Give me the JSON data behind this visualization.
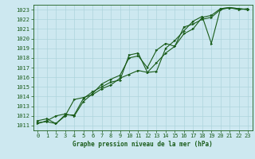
{
  "title": "Graphe pression niveau de la mer (hPa)",
  "background_color": "#cde8f0",
  "grid_color": "#aed4dc",
  "line_color": "#1a5c1a",
  "marker_color": "#1a5c1a",
  "xlim": [
    -0.5,
    23.5
  ],
  "ylim": [
    1010.5,
    1023.5
  ],
  "xticks": [
    0,
    1,
    2,
    3,
    4,
    5,
    6,
    7,
    8,
    9,
    10,
    11,
    12,
    13,
    14,
    15,
    16,
    17,
    18,
    19,
    20,
    21,
    22,
    23
  ],
  "yticks": [
    1011,
    1012,
    1013,
    1014,
    1015,
    1016,
    1017,
    1018,
    1019,
    1020,
    1021,
    1022,
    1023
  ],
  "series1_x": [
    0,
    1,
    2,
    3,
    4,
    5,
    6,
    7,
    8,
    9,
    10,
    11,
    12,
    13,
    14,
    15,
    16,
    17,
    18,
    19,
    20,
    21,
    22,
    23
  ],
  "series1_y": [
    1011.5,
    1011.7,
    1011.2,
    1012.0,
    1013.7,
    1013.9,
    1014.2,
    1014.8,
    1015.2,
    1015.9,
    1016.3,
    1016.7,
    1016.5,
    1017.5,
    1018.5,
    1019.2,
    1020.5,
    1021.0,
    1022.2,
    1022.4,
    1023.1,
    1023.2,
    1023.1,
    1023.0
  ],
  "series2_x": [
    0,
    1,
    2,
    3,
    4,
    5,
    6,
    7,
    8,
    9,
    10,
    11,
    12,
    13,
    14,
    15,
    16,
    17,
    18,
    19,
    20,
    21,
    22,
    23
  ],
  "series2_y": [
    1011.2,
    1011.5,
    1012.0,
    1012.2,
    1012.0,
    1013.5,
    1014.3,
    1015.3,
    1015.8,
    1016.2,
    1018.0,
    1018.2,
    1017.0,
    1018.8,
    1019.5,
    1019.2,
    1021.2,
    1021.5,
    1022.0,
    1022.2,
    1023.0,
    1023.2,
    1023.0,
    1023.1
  ],
  "series3_x": [
    0,
    1,
    2,
    3,
    4,
    5,
    6,
    7,
    8,
    9,
    10,
    11,
    12,
    13,
    14,
    15,
    16,
    17,
    18,
    19,
    20,
    21,
    22,
    23
  ],
  "series3_y": [
    1011.3,
    1011.4,
    1011.2,
    1012.1,
    1012.1,
    1013.8,
    1014.5,
    1015.0,
    1015.5,
    1015.7,
    1018.3,
    1018.5,
    1016.5,
    1016.6,
    1019.0,
    1019.8,
    1020.8,
    1021.8,
    1022.3,
    1019.5,
    1023.1,
    1023.2,
    1023.1,
    1023.0
  ],
  "tick_fontsize": 5,
  "label_fontsize": 5.5,
  "linewidth": 0.8,
  "markersize": 2.0
}
